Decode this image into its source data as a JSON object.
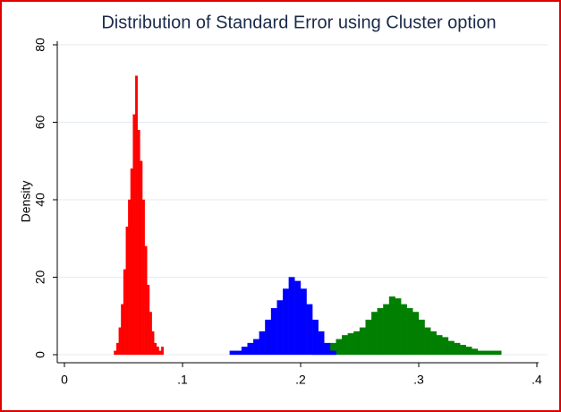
{
  "chart_data": {
    "type": "histogram",
    "title": "Distribution of Standard Error using Cluster option",
    "ylabel": "Density",
    "xlim": [
      0,
      0.4
    ],
    "ylim": [
      0,
      80
    ],
    "xticks": [
      0,
      {
        "value": 0.1,
        "label": ".1"
      },
      {
        "value": 0.2,
        "label": ".2"
      },
      {
        "value": 0.3,
        "label": ".3"
      },
      {
        "value": 0.4,
        "label": ".4"
      }
    ],
    "yticks": [
      0,
      20,
      40,
      60,
      80
    ],
    "grid": true,
    "series": [
      {
        "color": "#007f00",
        "bins": [
          0.21,
          0.215,
          0.22,
          0.225,
          0.23,
          0.235,
          0.24,
          0.245,
          0.25,
          0.255,
          0.26,
          0.265,
          0.27,
          0.275,
          0.28,
          0.285,
          0.29,
          0.295,
          0.3,
          0.305,
          0.31,
          0.315,
          0.32,
          0.325,
          0.33,
          0.335,
          0.34,
          0.345,
          0.35,
          0.355,
          0.36,
          0.365,
          0.37
        ],
        "values": [
          0.5,
          1,
          2,
          3,
          4,
          5,
          5.5,
          6,
          7,
          9,
          11,
          12,
          13,
          15,
          14.5,
          13,
          12,
          11,
          9,
          7,
          6,
          5,
          4.5,
          3.5,
          3,
          2.5,
          2,
          1.5,
          1,
          1,
          1,
          1
        ]
      },
      {
        "color": "#0000ff",
        "bins": [
          0.14,
          0.145,
          0.15,
          0.155,
          0.16,
          0.165,
          0.17,
          0.175,
          0.18,
          0.185,
          0.19,
          0.195,
          0.2,
          0.205,
          0.21,
          0.215,
          0.22,
          0.225,
          0.23
        ],
        "values": [
          1,
          1,
          2,
          3,
          4,
          6,
          9,
          12,
          14,
          17,
          20,
          19,
          17,
          13,
          9,
          6,
          3,
          1
        ]
      },
      {
        "color": "#ff0000",
        "bins": [
          0.042,
          0.044,
          0.046,
          0.048,
          0.05,
          0.052,
          0.054,
          0.056,
          0.058,
          0.06,
          0.062,
          0.064,
          0.066,
          0.068,
          0.07,
          0.072,
          0.074,
          0.076,
          0.078,
          0.08,
          0.082,
          0.084
        ],
        "values": [
          1,
          3,
          7,
          13,
          22,
          33,
          40,
          48,
          62,
          72,
          58,
          50,
          40,
          28,
          18,
          11,
          6,
          3,
          2,
          1,
          2
        ]
      }
    ]
  }
}
